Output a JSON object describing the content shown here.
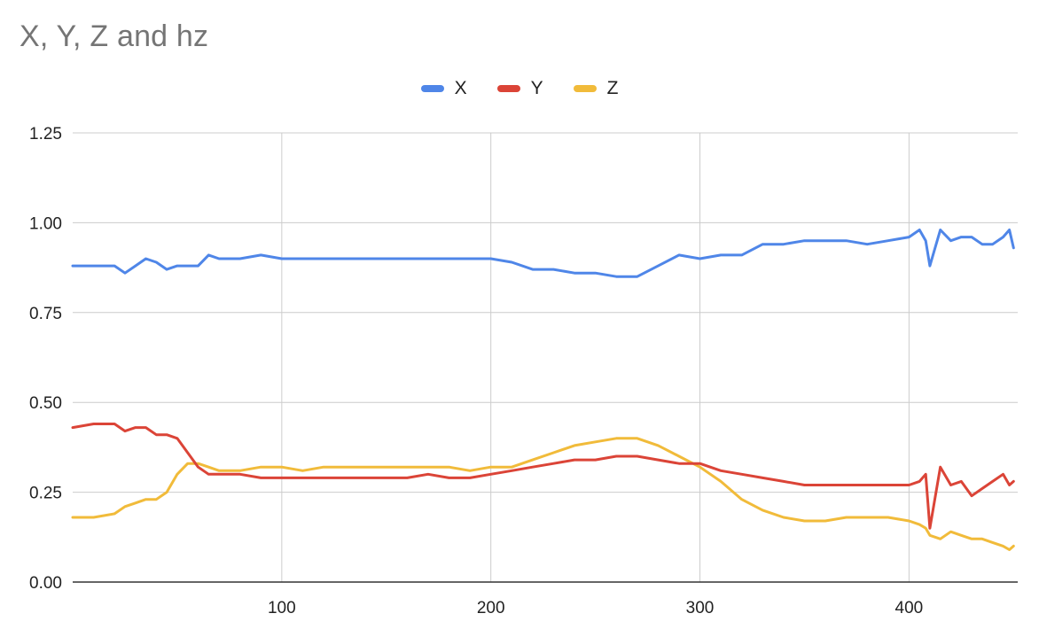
{
  "chart_data": {
    "type": "line",
    "title": "X, Y, Z and hz",
    "xlabel": "",
    "ylabel": "",
    "xlim": [
      0,
      452
    ],
    "ylim": [
      0,
      1.25
    ],
    "x_ticks": [
      100,
      200,
      300,
      400
    ],
    "y_ticks": [
      0,
      0.25,
      0.5,
      0.75,
      1.0,
      1.25
    ],
    "y_tick_labels": [
      "0.00",
      "0.25",
      "0.50",
      "0.75",
      "1.00",
      "1.25"
    ],
    "grid": true,
    "legend_position": "top",
    "x": [
      0,
      10,
      20,
      25,
      30,
      35,
      40,
      45,
      50,
      55,
      60,
      65,
      70,
      80,
      90,
      100,
      110,
      120,
      130,
      140,
      150,
      160,
      170,
      180,
      190,
      200,
      210,
      220,
      230,
      240,
      250,
      260,
      265,
      270,
      280,
      290,
      300,
      310,
      320,
      330,
      340,
      350,
      360,
      370,
      380,
      390,
      400,
      405,
      408,
      410,
      415,
      420,
      425,
      430,
      435,
      440,
      445,
      448,
      450
    ],
    "series": [
      {
        "name": "X",
        "color": "#4f86e8",
        "values": [
          0.88,
          0.88,
          0.88,
          0.86,
          0.88,
          0.9,
          0.89,
          0.87,
          0.88,
          0.88,
          0.88,
          0.91,
          0.9,
          0.9,
          0.91,
          0.9,
          0.9,
          0.9,
          0.9,
          0.9,
          0.9,
          0.9,
          0.9,
          0.9,
          0.9,
          0.9,
          0.89,
          0.87,
          0.87,
          0.86,
          0.86,
          0.85,
          0.85,
          0.85,
          0.88,
          0.91,
          0.9,
          0.91,
          0.91,
          0.94,
          0.94,
          0.95,
          0.95,
          0.95,
          0.94,
          0.95,
          0.96,
          0.98,
          0.95,
          0.88,
          0.98,
          0.95,
          0.96,
          0.96,
          0.94,
          0.94,
          0.96,
          0.98,
          0.93
        ]
      },
      {
        "name": "Y",
        "color": "#db4437",
        "values": [
          0.43,
          0.44,
          0.44,
          0.42,
          0.43,
          0.43,
          0.41,
          0.41,
          0.4,
          0.36,
          0.32,
          0.3,
          0.3,
          0.3,
          0.29,
          0.29,
          0.29,
          0.29,
          0.29,
          0.29,
          0.29,
          0.29,
          0.3,
          0.29,
          0.29,
          0.3,
          0.31,
          0.32,
          0.33,
          0.34,
          0.34,
          0.35,
          0.35,
          0.35,
          0.34,
          0.33,
          0.33,
          0.31,
          0.3,
          0.29,
          0.28,
          0.27,
          0.27,
          0.27,
          0.27,
          0.27,
          0.27,
          0.28,
          0.3,
          0.15,
          0.32,
          0.27,
          0.28,
          0.24,
          0.26,
          0.28,
          0.3,
          0.27,
          0.28
        ]
      },
      {
        "name": "Z",
        "color": "#f1bb3a",
        "values": [
          0.18,
          0.18,
          0.19,
          0.21,
          0.22,
          0.23,
          0.23,
          0.25,
          0.3,
          0.33,
          0.33,
          0.32,
          0.31,
          0.31,
          0.32,
          0.32,
          0.31,
          0.32,
          0.32,
          0.32,
          0.32,
          0.32,
          0.32,
          0.32,
          0.31,
          0.32,
          0.32,
          0.34,
          0.36,
          0.38,
          0.39,
          0.4,
          0.4,
          0.4,
          0.38,
          0.35,
          0.32,
          0.28,
          0.23,
          0.2,
          0.18,
          0.17,
          0.17,
          0.18,
          0.18,
          0.18,
          0.17,
          0.16,
          0.15,
          0.13,
          0.12,
          0.14,
          0.13,
          0.12,
          0.12,
          0.11,
          0.1,
          0.09,
          0.1
        ]
      }
    ]
  }
}
